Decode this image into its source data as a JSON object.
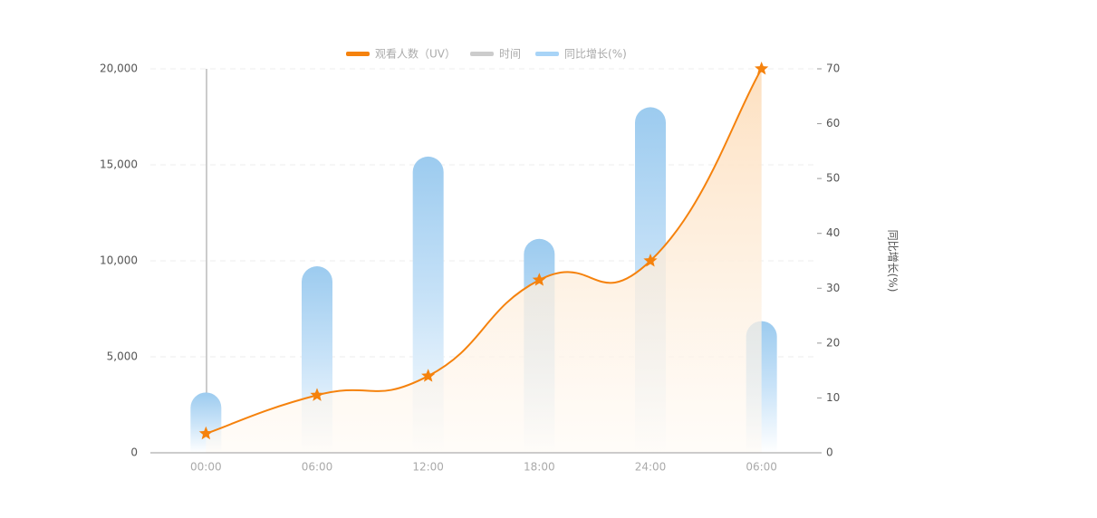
{
  "chart_data": {
    "type": "bar-line",
    "legend": [
      {
        "name": "观看人数（UV）",
        "color": "#f5820d"
      },
      {
        "name": "时间",
        "color": "#cccccc"
      },
      {
        "name": "同比增长(%)",
        "color": "#a8d4f7"
      }
    ],
    "categories": [
      "00:00",
      "06:00",
      "12:00",
      "18:00",
      "24:00",
      "06:00"
    ],
    "series": [
      {
        "name": "同比增长(%)",
        "type": "bar",
        "axis": "y2",
        "color": "#9ccbef",
        "values": [
          11,
          34,
          54,
          39,
          63,
          24
        ]
      },
      {
        "name": "观看人数（UV）",
        "type": "line",
        "color": "#f5820d",
        "values": [
          1000,
          3000,
          4000,
          9000,
          10000,
          20000
        ]
      }
    ],
    "ylim": [
      0,
      20000
    ],
    "yticks": [
      {
        "value": 0,
        "label": "0"
      },
      {
        "value": 5000,
        "label": "5,000"
      },
      {
        "value": 10000,
        "label": "10,000"
      },
      {
        "value": 15000,
        "label": "15,000"
      },
      {
        "value": 20000,
        "label": "20,000"
      }
    ],
    "y2lim": [
      0,
      70
    ],
    "y2ticks": [
      0,
      10,
      20,
      30,
      40,
      50,
      60,
      70
    ],
    "y2label": "同比增长(%)",
    "grid": true
  }
}
